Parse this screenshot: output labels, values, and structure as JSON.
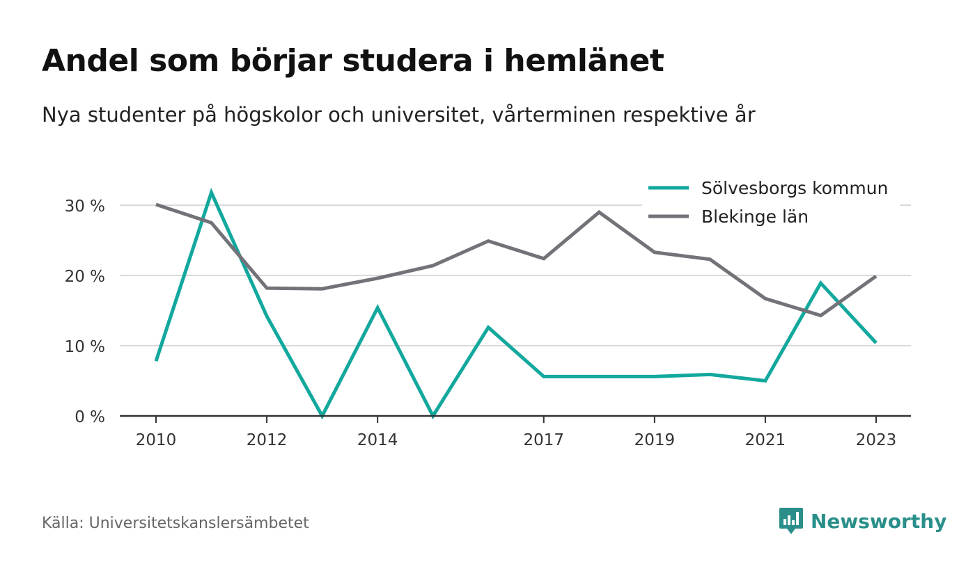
{
  "header": {
    "title": "Andel som börjar studera i hemlänet",
    "subtitle": "Nya studenter på högskolor och universitet, vårterminen respektive år"
  },
  "footer": {
    "source": "Källa: Universitetskanslersämbetet",
    "brand": "Newsworthy",
    "brand_icon": "bar-chart-badge-icon"
  },
  "colors": {
    "Sölvesborgs kommun": "#13a89e",
    "Blekinge län": "#737278",
    "grid": "#d9d9d9",
    "axis": "#333333",
    "brand": "#2a8f8a"
  },
  "chart_data": {
    "type": "line",
    "title": "Andel som börjar studera i hemlänet",
    "subtitle": "Nya studenter på högskolor och universitet, vårterminen respektive år",
    "x": [
      2010,
      2011,
      2012,
      2013,
      2014,
      2015,
      2016,
      2017,
      2018,
      2019,
      2020,
      2021,
      2022,
      2023
    ],
    "xticks": [
      "2010",
      "2012",
      "2014",
      "2017",
      "2019",
      "2021",
      "2023"
    ],
    "yticks": [
      "0 %",
      "10 %",
      "20 %",
      "30 %"
    ],
    "ylim": [
      0,
      30
    ],
    "grid": true,
    "legend_position": "top-right",
    "series": [
      {
        "name": "Sölvesborgs kommun",
        "values": [
          7.8,
          31.8,
          14.2,
          0.0,
          15.4,
          0.0,
          12.6,
          5.6,
          5.6,
          5.6,
          5.9,
          5.0,
          18.9,
          10.4
        ]
      },
      {
        "name": "Blekinge län",
        "values": [
          30.1,
          27.5,
          18.2,
          18.1,
          19.6,
          21.4,
          24.9,
          22.4,
          29.0,
          23.3,
          22.3,
          16.7,
          14.3,
          19.9
        ]
      }
    ]
  }
}
